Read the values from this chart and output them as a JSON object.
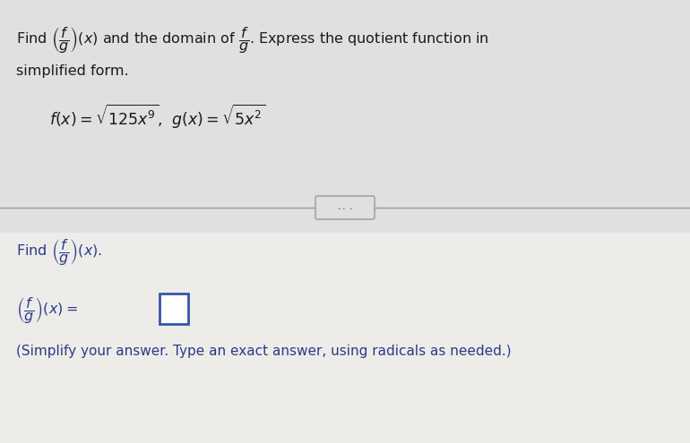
{
  "bg_top": "#e0e0e0",
  "bg_bottom": "#eeece8",
  "text_color_top": "#1a1a1a",
  "text_color_bottom": "#2a3a8a",
  "box_border_color": "#3355aa",
  "box_fill_color": "#ffffff",
  "divider_color": "#999999",
  "dots_color": "#555555",
  "top_line1": "Find $\\left(\\dfrac{f}{g}\\right)(x)$ and the domain of $\\dfrac{f}{g}$. Express the quotient function in",
  "top_line2": "simplified form.",
  "top_line3": "$f(x) = \\sqrt{125x^9}$,  $g(x) = \\sqrt{5x^2}$",
  "bottom_find": "Find $\\left(\\dfrac{f}{g}\\right)(x).$",
  "bottom_answer": "$\\left(\\dfrac{f}{g}\\right)(x) = $",
  "footnote": "(Simplify your answer. Type an exact answer, using radicals as needed.)"
}
